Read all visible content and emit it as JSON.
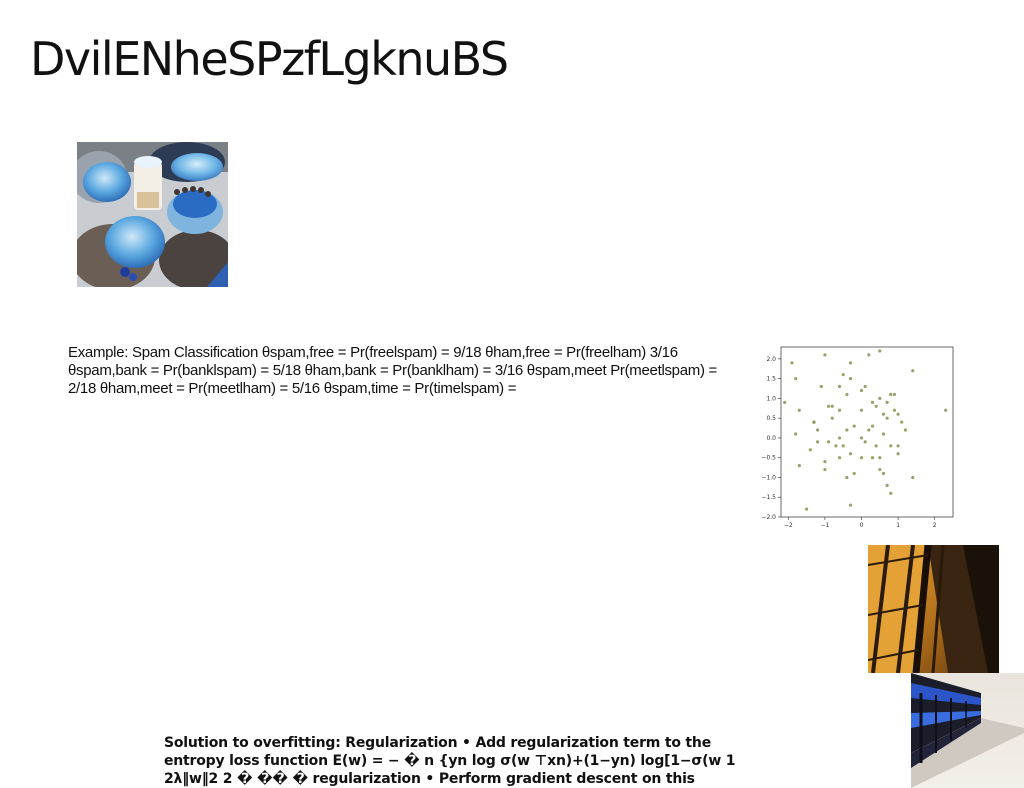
{
  "slide": {
    "title": "DvilENheSPzfLgknuBS",
    "example_text": "Example: Spam Classification θspam,free = Pr(freelspam) = 9/18 θham,free = Pr(freelham) 3/16 θspam,bank = Pr(banklspam) = 5/18 θham,bank = Pr(banklham) = 3/16 θspam,meet Pr(meetlspam) = 2/18 θham,meet = Pr(meetlham) = 5/16 θspam,time = Pr(timelspam) =",
    "solution_text": "Solution to overfitting: Regularization • Add regularization term to the entropy loss function E(w) = − � n {yn log σ(w ⊤xn)+(1−yn) log[1−σ(w 1 2λ‖w‖2 2 � �� � regularization • Perform gradient descent on this"
  },
  "chart_data": {
    "type": "scatter",
    "xlim": [
      -2.2,
      2.5
    ],
    "ylim": [
      -2.0,
      2.3
    ],
    "xticks": [
      "−2",
      "−1",
      "0",
      "1",
      "2"
    ],
    "yticks": [
      "2.0",
      "1.5",
      "1.0",
      "0.5",
      "0.0",
      "−0.5",
      "−1.0",
      "−1.5",
      "−2.0"
    ],
    "point_color": "#8a9150",
    "x": [
      -1.3,
      -1.9,
      -1.0,
      -0.3,
      0.2,
      0.5,
      1.4,
      -1.8,
      -1.1,
      0.0,
      -2.1,
      -1.7,
      -1.3,
      -0.9,
      -0.6,
      -0.5,
      -0.3,
      0.1,
      0.3,
      0.5,
      0.7,
      0.8,
      0.9,
      1.0,
      -1.2,
      -0.8,
      -0.6,
      -0.4,
      -0.2,
      0.0,
      0.2,
      0.4,
      0.6,
      0.7,
      0.9,
      1.1,
      2.3,
      -1.8,
      -1.2,
      -0.9,
      -0.7,
      -0.5,
      -0.3,
      0.1,
      0.4,
      0.6,
      0.8,
      1.0,
      1.2,
      -1.7,
      -1.4,
      -1.0,
      -0.6,
      -0.2,
      0.0,
      0.3,
      0.5,
      0.7,
      1.4,
      -1.5,
      -0.4,
      0.5,
      0.8,
      -0.4,
      -0.6,
      -0.8,
      0.3,
      0.6,
      1.0,
      0.0,
      -1.0,
      -0.3
    ],
    "y": [
      0.4,
      1.9,
      2.1,
      1.9,
      2.1,
      2.2,
      1.7,
      1.5,
      1.3,
      1.2,
      0.9,
      0.7,
      0.4,
      0.8,
      0.7,
      1.6,
      1.5,
      1.3,
      0.9,
      1.0,
      0.9,
      1.1,
      1.1,
      0.6,
      0.2,
      0.5,
      0.0,
      0.2,
      0.3,
      0.7,
      0.2,
      0.8,
      0.6,
      0.5,
      0.7,
      0.4,
      0.7,
      0.1,
      -0.1,
      -0.1,
      -0.2,
      -0.2,
      -0.4,
      -0.1,
      -0.2,
      0.1,
      -0.2,
      -0.2,
      0.2,
      -0.7,
      -0.3,
      -0.8,
      -0.5,
      -0.9,
      -0.5,
      -0.5,
      -0.5,
      -1.2,
      -1.0,
      -1.8,
      -1.0,
      -0.8,
      -1.4,
      1.1,
      1.3,
      0.8,
      0.3,
      -0.9,
      -0.4,
      0.0,
      -0.6,
      -1.7
    ]
  }
}
